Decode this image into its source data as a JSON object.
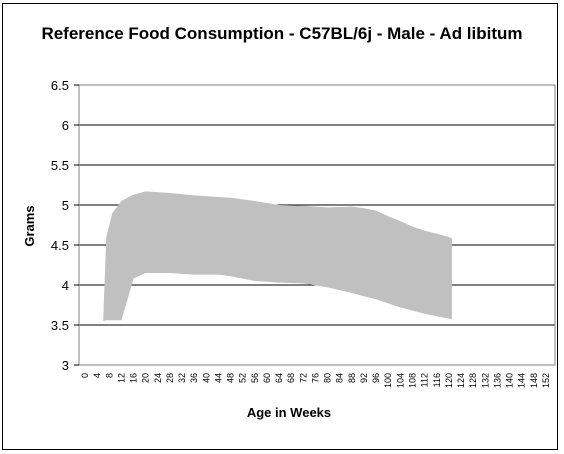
{
  "chart_data": {
    "type": "area",
    "title": "Reference Food Consumption - C57BL/6j - Male - Ad libitum",
    "xlabel": "Age in Weeks",
    "ylabel": "Grams",
    "ylim": [
      3,
      6.5
    ],
    "yticks": [
      "3",
      "3.5",
      "4",
      "4.5",
      "5",
      "5.5",
      "6",
      "6.5"
    ],
    "xticks": [
      "0",
      "4",
      "8",
      "12",
      "16",
      "20",
      "24",
      "28",
      "32",
      "36",
      "40",
      "44",
      "48",
      "52",
      "56",
      "60",
      "64",
      "68",
      "72",
      "76",
      "80",
      "84",
      "88",
      "92",
      "96",
      "100",
      "104",
      "108",
      "112",
      "116",
      "120",
      "124",
      "128",
      "132",
      "136",
      "140",
      "144",
      "148",
      "152"
    ],
    "grid": "horizontal",
    "legend": "none",
    "fill_color": "#c0c0c0",
    "series": [
      {
        "x": [
          6,
          7,
          9,
          12,
          16,
          20,
          28,
          36,
          44,
          48,
          56,
          64,
          72,
          80,
          88,
          92,
          96,
          100,
          104,
          108,
          112,
          116,
          120,
          121
        ],
        "upper": [
          3.6,
          4.6,
          4.9,
          5.05,
          5.13,
          5.17,
          5.15,
          5.12,
          5.1,
          5.09,
          5.05,
          5.0,
          4.99,
          4.97,
          4.98,
          4.96,
          4.93,
          4.86,
          4.8,
          4.73,
          4.68,
          4.64,
          4.6,
          4.58
        ],
        "lower": [
          3.55,
          3.56,
          3.56,
          3.56,
          4.08,
          4.15,
          4.15,
          4.13,
          4.13,
          4.11,
          4.05,
          4.03,
          4.02,
          3.97,
          3.9,
          3.86,
          3.82,
          3.77,
          3.72,
          3.68,
          3.64,
          3.61,
          3.58,
          3.57
        ]
      }
    ]
  }
}
